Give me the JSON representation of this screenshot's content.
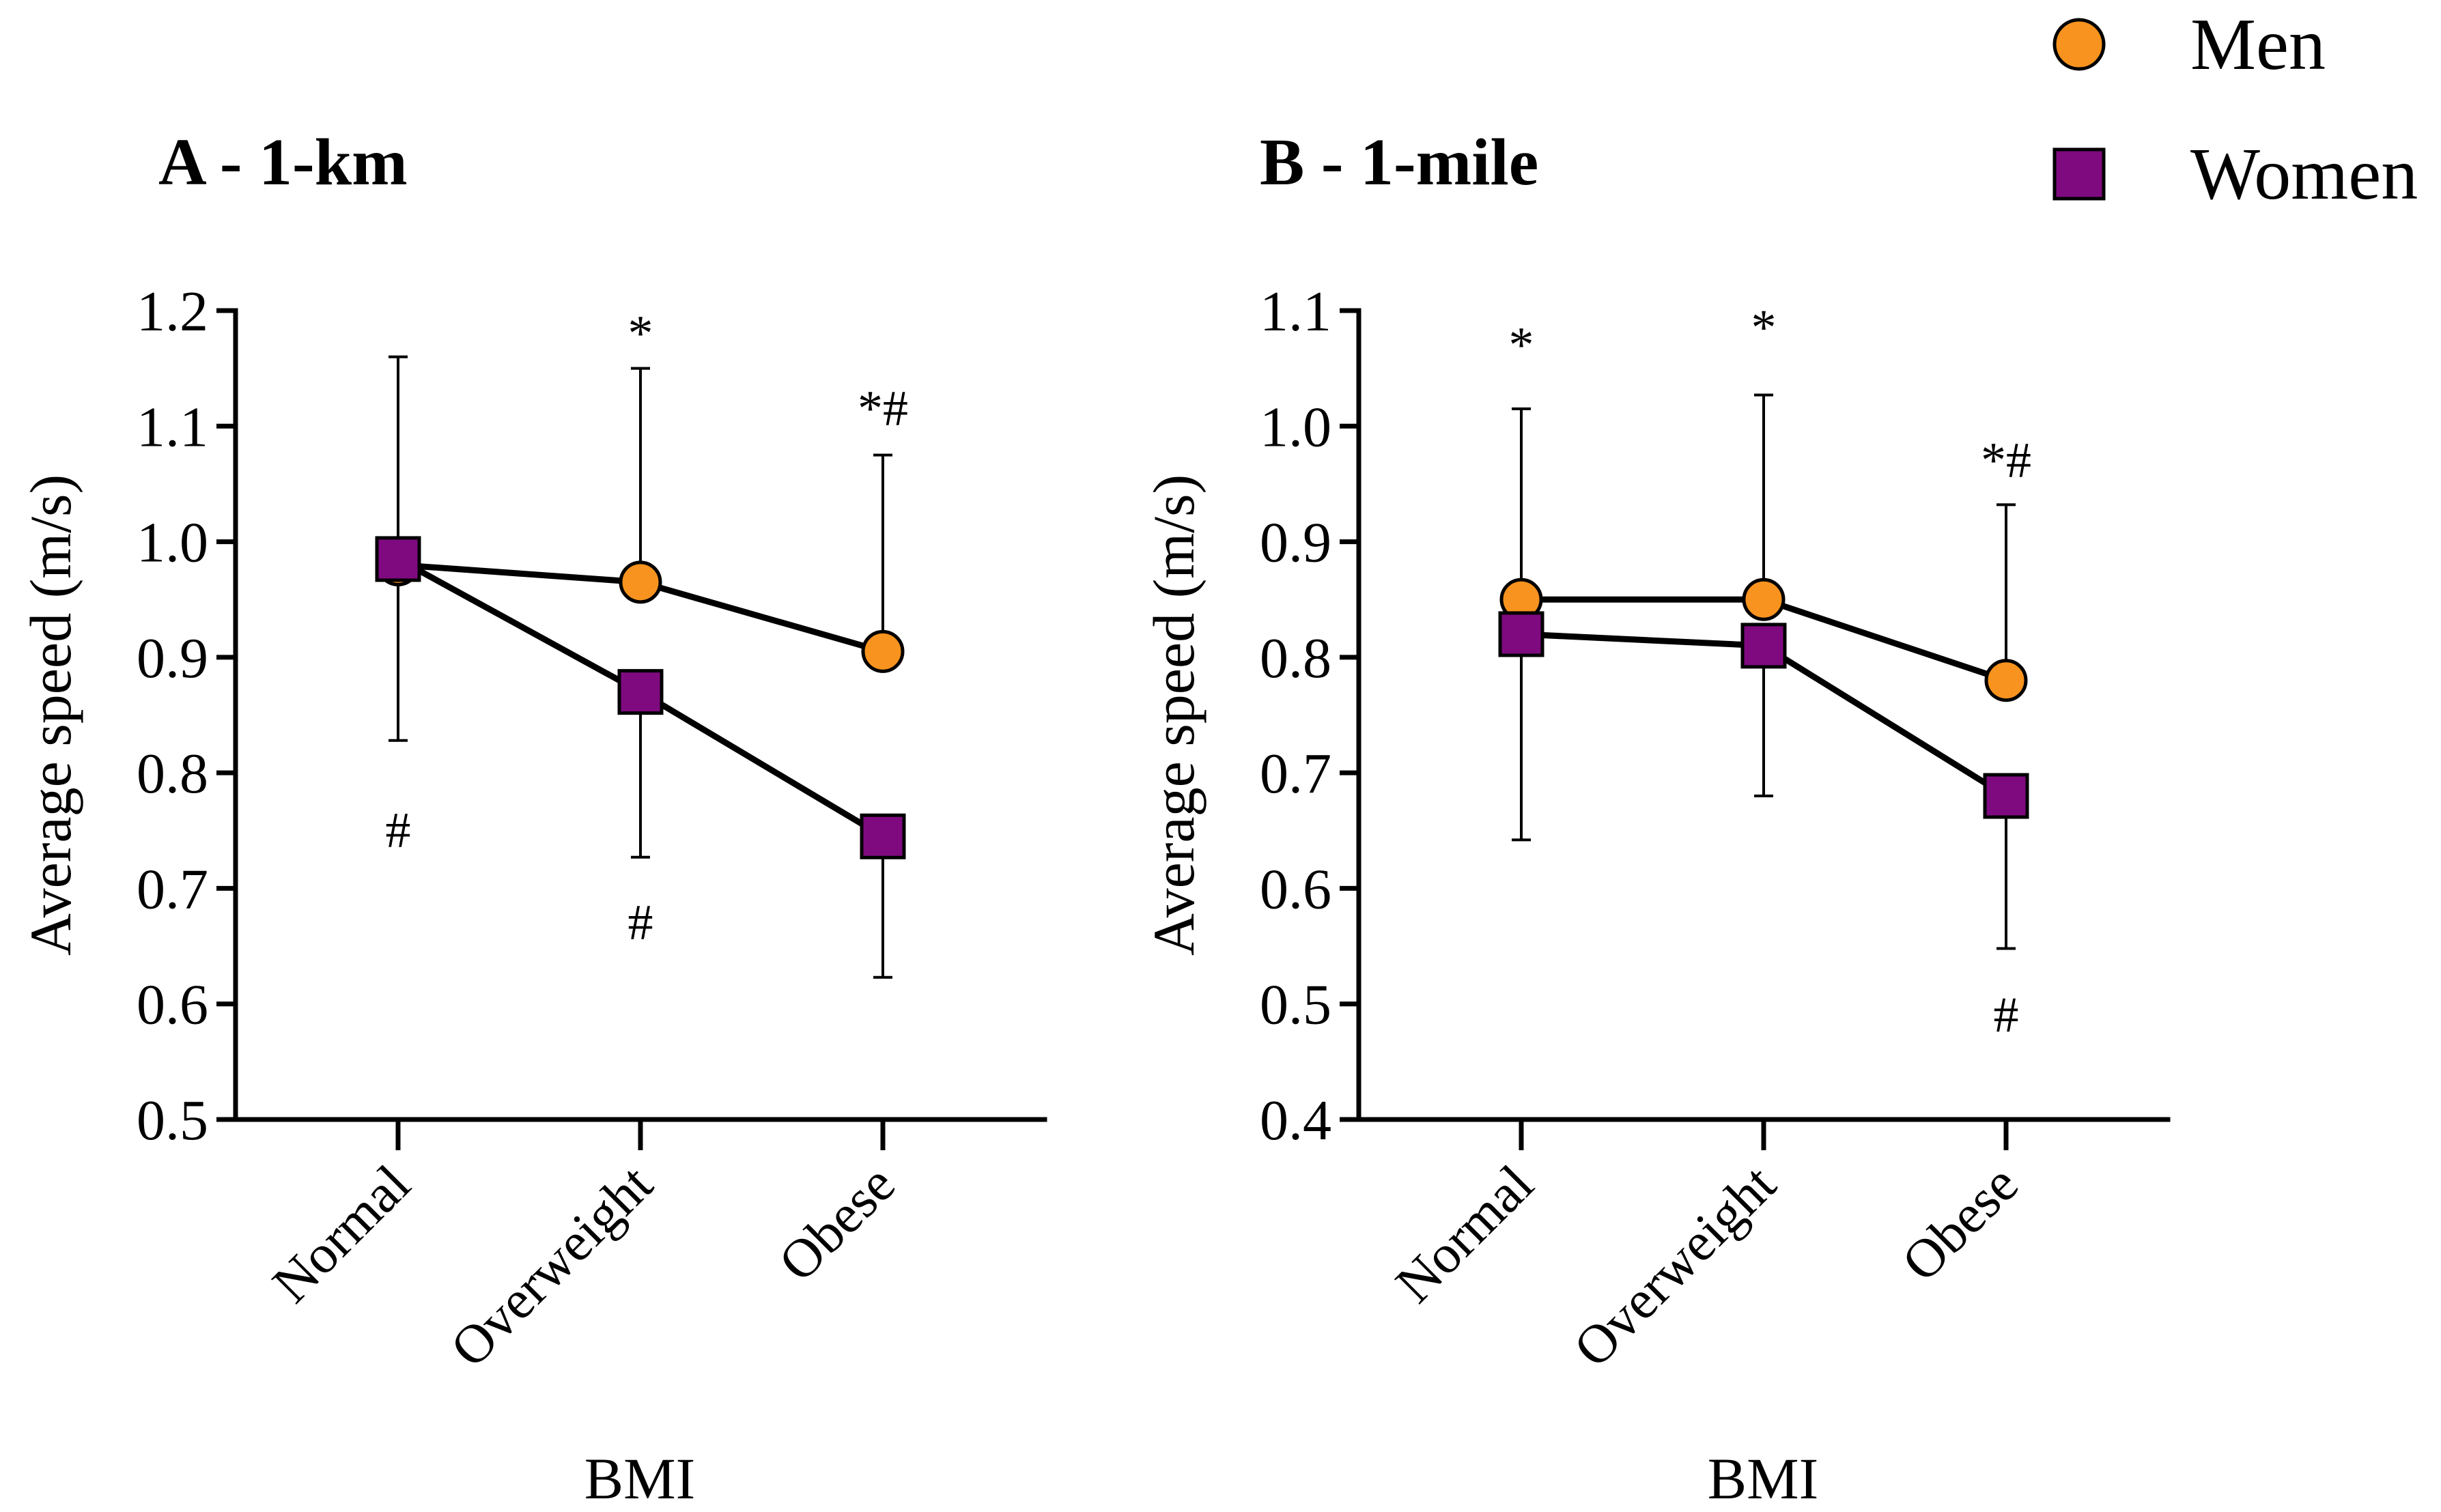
{
  "legend": [
    {
      "name": "Men",
      "marker": "circle",
      "color": "#f7931e"
    },
    {
      "name": "Women",
      "marker": "square",
      "color": "#7f0a80"
    }
  ],
  "chart_data": [
    {
      "type": "line",
      "title": "A - 1-km",
      "xlabel": "BMI",
      "ylabel": "Average speed (m/s)",
      "categories": [
        "Normal",
        "Overweight",
        "Obese"
      ],
      "ylim": [
        0.5,
        1.2
      ],
      "yticks": [
        "0.5",
        "0.6",
        "0.7",
        "0.8",
        "0.9",
        "1.0",
        "1.1",
        "1.2"
      ],
      "grid": false,
      "series": [
        {
          "name": "Men",
          "values": [
            0.98,
            0.965,
            0.905
          ],
          "error_upper": [
            1.16,
            1.15,
            1.075
          ],
          "error_lower": [
            null,
            null,
            null
          ]
        },
        {
          "name": "Women",
          "values": [
            0.985,
            0.87,
            0.745
          ],
          "error_upper": [
            null,
            null,
            null
          ],
          "error_lower": [
            0.828,
            0.727,
            0.623
          ]
        }
      ],
      "annotations": [
        {
          "category": "Overweight",
          "y": 1.18,
          "text": "*"
        },
        {
          "category": "Obese",
          "y": 1.115,
          "text": "*#"
        },
        {
          "category": "Normal",
          "y": 0.75,
          "text": "#"
        },
        {
          "category": "Overweight",
          "y": 0.67,
          "text": "#"
        }
      ]
    },
    {
      "type": "line",
      "title": "B - 1-mile",
      "xlabel": "BMI",
      "ylabel": "Average speed (m/s)",
      "categories": [
        "Normal",
        "Overweight",
        "Obese"
      ],
      "ylim": [
        0.4,
        1.1
      ],
      "yticks": [
        "0.4",
        "0.5",
        "0.6",
        "0.7",
        "0.8",
        "0.9",
        "1.0",
        "1.1"
      ],
      "grid": false,
      "series": [
        {
          "name": "Men",
          "values": [
            0.85,
            0.85,
            0.78
          ],
          "error_upper": [
            1.015,
            1.027,
            0.932
          ],
          "error_lower": [
            null,
            null,
            null
          ]
        },
        {
          "name": "Women",
          "values": [
            0.82,
            0.81,
            0.68
          ],
          "error_upper": [
            null,
            null,
            null
          ],
          "error_lower": [
            0.642,
            0.68,
            0.548
          ]
        }
      ],
      "annotations": [
        {
          "category": "Normal",
          "y": 1.07,
          "text": "*"
        },
        {
          "category": "Overweight",
          "y": 1.085,
          "text": "*"
        },
        {
          "category": "Obese",
          "y": 0.97,
          "text": "*#"
        },
        {
          "category": "Obese",
          "y": 0.49,
          "text": "#"
        }
      ]
    }
  ]
}
